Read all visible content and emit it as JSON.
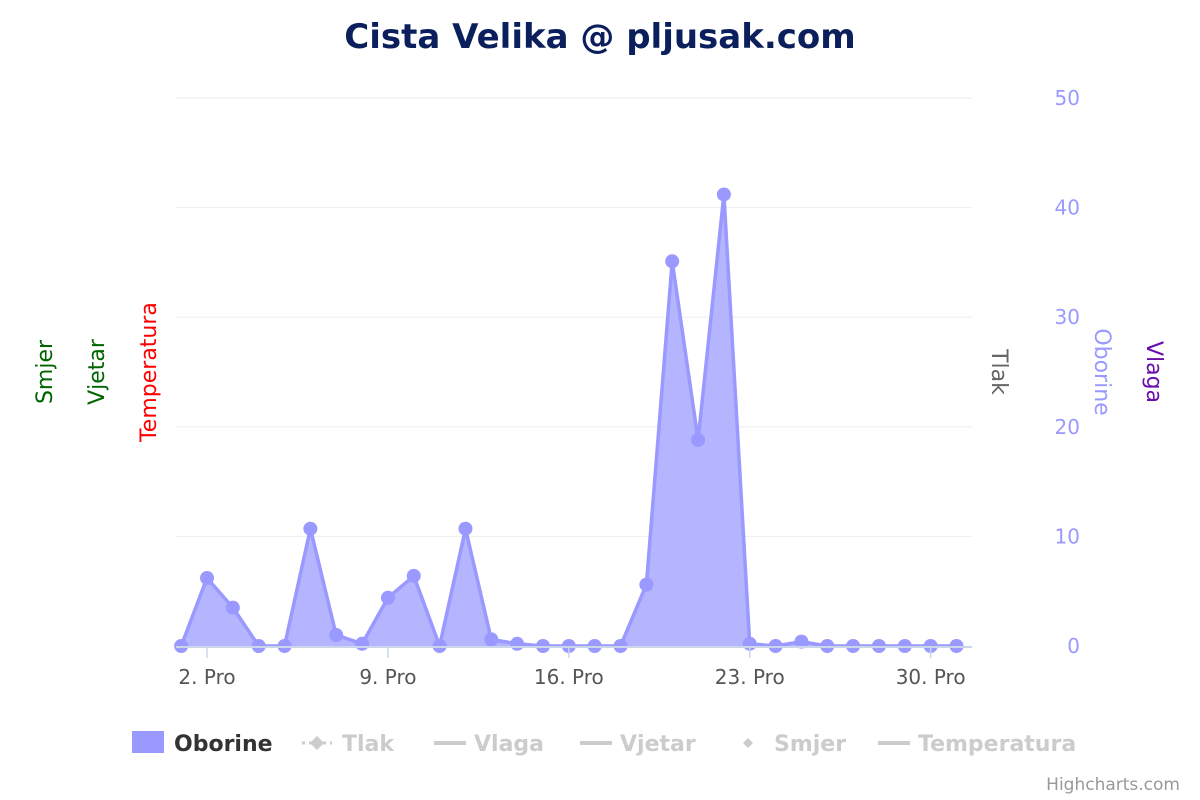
{
  "title": "Cista Velika @ pljusak.com",
  "credits": "Highcharts.com",
  "colors": {
    "title": "#0b1f5c",
    "oborine": "#9999ff",
    "oborine_fill": "#b0b0ff",
    "tlak": "#666666",
    "vlaga": "#6a0dad",
    "vjetar": "#006400",
    "smjer": "#006400",
    "temperatura": "#ff0000",
    "legend_inactive": "#cccccc",
    "legend_active": "#333333",
    "grid": "#eeeeee",
    "axis_line": "#ccd6eb"
  },
  "axis_titles": {
    "smjer": "Smjer",
    "vjetar": "Vjetar",
    "temperatura": "Temperatura",
    "tlak": "Tlak",
    "oborine": "Oborine",
    "vlaga": "Vlaga"
  },
  "chart_data": {
    "type": "area",
    "title": "Cista Velika @ pljusak.com",
    "x_unit": "day of December",
    "x_ticks": [
      {
        "day": 2,
        "label": "2. Pro"
      },
      {
        "day": 9,
        "label": "9. Pro"
      },
      {
        "day": 16,
        "label": "16. Pro"
      },
      {
        "day": 23,
        "label": "23. Pro"
      },
      {
        "day": 30,
        "label": "30. Pro"
      }
    ],
    "xlim": [
      0.8,
      31.6
    ],
    "ylim": [
      0,
      50
    ],
    "y_ticks": [
      0,
      10,
      20,
      30,
      40,
      50
    ],
    "grid": true,
    "legend_position": "bottom",
    "series": [
      {
        "name": "Oborine",
        "visible": true,
        "x": [
          1,
          2,
          3,
          4,
          5,
          6,
          7,
          8,
          9,
          10,
          11,
          12,
          13,
          14,
          15,
          16,
          17,
          18,
          19,
          20,
          21,
          22,
          23,
          24,
          25,
          26,
          27,
          28,
          29,
          30,
          31
        ],
        "values": [
          0,
          6.2,
          3.5,
          0,
          0,
          10.7,
          1,
          0.2,
          4.4,
          6.4,
          0,
          10.7,
          0.6,
          0.2,
          0,
          0,
          0,
          0,
          5.6,
          35.1,
          18.8,
          41.2,
          0.2,
          0,
          0.4,
          0,
          0,
          0,
          0,
          0,
          0
        ]
      },
      {
        "name": "Tlak",
        "visible": false
      },
      {
        "name": "Vlaga",
        "visible": false
      },
      {
        "name": "Vjetar",
        "visible": false
      },
      {
        "name": "Smjer",
        "visible": false
      },
      {
        "name": "Temperatura",
        "visible": false
      }
    ]
  },
  "legend": {
    "items": [
      {
        "label": "Oborine",
        "symbol": "rect",
        "active": true
      },
      {
        "label": "Tlak",
        "symbol": "dashed-diamond",
        "active": false
      },
      {
        "label": "Vlaga",
        "symbol": "line",
        "active": false
      },
      {
        "label": "Vjetar",
        "symbol": "line",
        "active": false
      },
      {
        "label": "Smjer",
        "symbol": "diamond",
        "active": false
      },
      {
        "label": "Temperatura",
        "symbol": "line",
        "active": false
      }
    ]
  }
}
